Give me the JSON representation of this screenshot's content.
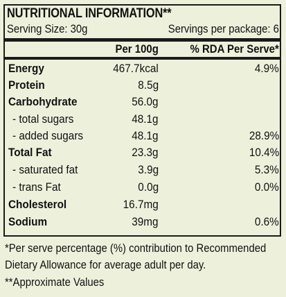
{
  "title": "NUTRITIONAL INFORMATION**",
  "serving_size": "Serving Size: 30g",
  "servings_per_package": "Servings per package: 6",
  "headers": {
    "per_100g": "Per 100g",
    "rda": "% RDA Per Serve*"
  },
  "rows": [
    {
      "label": "Energy",
      "per_100g": "467.7kcal",
      "rda": "4.9%"
    },
    {
      "label": "Protein",
      "per_100g": "8.5g",
      "rda": ""
    },
    {
      "label": "Carbohydrate",
      "per_100g": "56.0g",
      "rda": ""
    },
    {
      "label": "- total sugars",
      "per_100g": "48.1g",
      "rda": ""
    },
    {
      "label": "- added sugars",
      "per_100g": "48.1g",
      "rda": "28.9%"
    },
    {
      "label": "Total Fat",
      "per_100g": "23.3g",
      "rda": "10.4%"
    },
    {
      "label": "- saturated fat",
      "per_100g": "3.9g",
      "rda": "5.3%"
    },
    {
      "label": "- trans Fat",
      "per_100g": "0.0g",
      "rda": "0.0%"
    },
    {
      "label": "Cholesterol",
      "per_100g": "16.7mg",
      "rda": ""
    },
    {
      "label": "Sodium",
      "per_100g": "39mg",
      "rda": "0.6%"
    }
  ],
  "footnotes": [
    "*Per serve percentage (%) contribution to Recommended",
    "Dietary Allowance for average adult per day.",
    "**Approximate Values"
  ]
}
